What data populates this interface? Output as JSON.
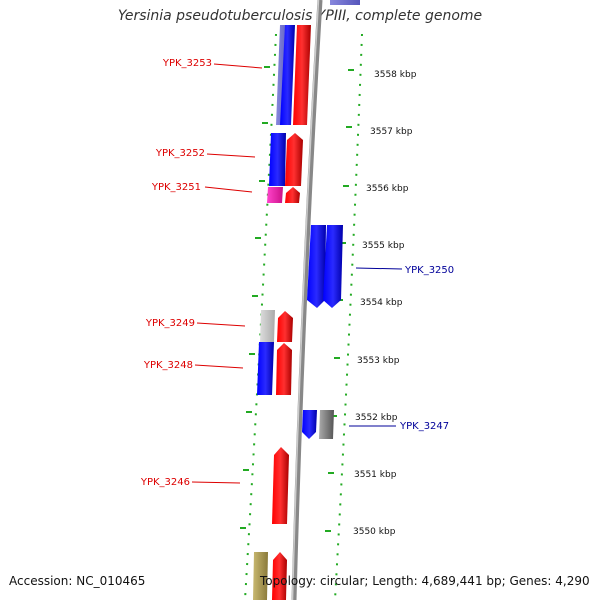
{
  "title": "Yersinia pseudotuberculosis YPIII, complete genome",
  "footer": {
    "accession": "Accession: NC_010465",
    "summary": "Topology: circular; Length: 4,689,441 bp; Genes: 4,290"
  },
  "colors": {
    "forward": "#ff0000",
    "reverse": "#0000ff",
    "ruler": "#22aa22",
    "backbone": "#888888",
    "label_left": "#dd0000",
    "label_right": "#000099"
  },
  "ruler_ticks": [
    "3558 kbp",
    "3557 kbp",
    "3556 kbp",
    "3555 kbp",
    "3554 kbp",
    "3553 kbp",
    "3552 kbp",
    "3551 kbp",
    "3550 kbp"
  ],
  "gene_labels": [
    {
      "name": "YPK_3253",
      "side": "left"
    },
    {
      "name": "YPK_3252",
      "side": "left"
    },
    {
      "name": "YPK_3251",
      "side": "left"
    },
    {
      "name": "YPK_3250",
      "side": "right"
    },
    {
      "name": "YPK_3249",
      "side": "left"
    },
    {
      "name": "YPK_3248",
      "side": "left"
    },
    {
      "name": "YPK_3247",
      "side": "right"
    },
    {
      "name": "YPK_3246",
      "side": "left"
    }
  ]
}
